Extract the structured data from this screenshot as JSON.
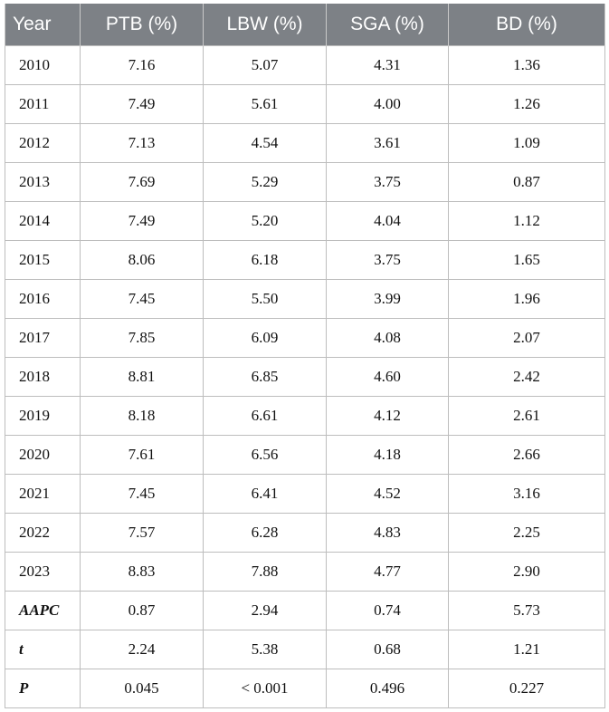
{
  "table": {
    "header": [
      "Year",
      "PTB (%)",
      "LBW (%)",
      "SGA (%)",
      "BD (%)"
    ],
    "rows": [
      [
        "2010",
        "7.16",
        "5.07",
        "4.31",
        "1.36"
      ],
      [
        "2011",
        "7.49",
        "5.61",
        "4.00",
        "1.26"
      ],
      [
        "2012",
        "7.13",
        "4.54",
        "3.61",
        "1.09"
      ],
      [
        "2013",
        "7.69",
        "5.29",
        "3.75",
        "0.87"
      ],
      [
        "2014",
        "7.49",
        "5.20",
        "4.04",
        "1.12"
      ],
      [
        "2015",
        "8.06",
        "6.18",
        "3.75",
        "1.65"
      ],
      [
        "2016",
        "7.45",
        "5.50",
        "3.99",
        "1.96"
      ],
      [
        "2017",
        "7.85",
        "6.09",
        "4.08",
        "2.07"
      ],
      [
        "2018",
        "8.81",
        "6.85",
        "4.60",
        "2.42"
      ],
      [
        "2019",
        "8.18",
        "6.61",
        "4.12",
        "2.61"
      ],
      [
        "2020",
        "7.61",
        "6.56",
        "4.18",
        "2.66"
      ],
      [
        "2021",
        "7.45",
        "6.41",
        "4.52",
        "3.16"
      ],
      [
        "2022",
        "7.57",
        "6.28",
        "4.83",
        "2.25"
      ],
      [
        "2023",
        "8.83",
        "7.88",
        "4.77",
        "2.90"
      ],
      [
        "AAPC",
        "0.87",
        "2.94",
        "0.74",
        "5.73"
      ],
      [
        "t",
        "2.24",
        "5.38",
        "0.68",
        "1.21"
      ],
      [
        "P",
        "0.045",
        "< 0.001",
        "0.496",
        "0.227"
      ]
    ]
  }
}
